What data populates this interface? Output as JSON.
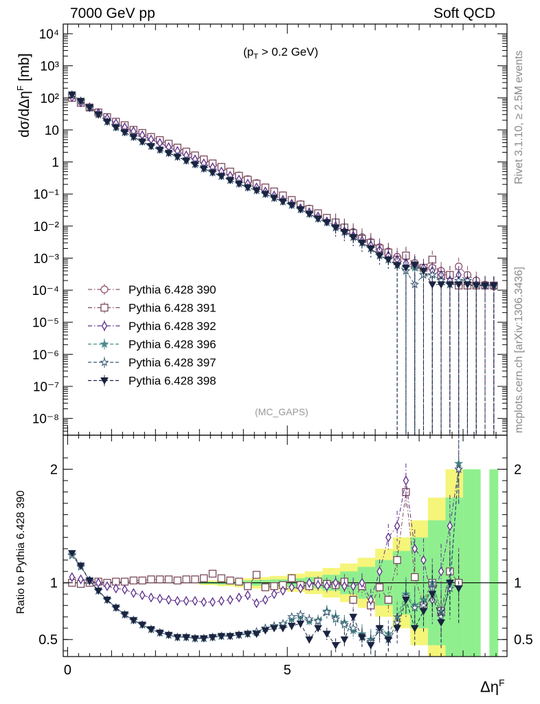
{
  "header": {
    "left": "7000 GeV pp",
    "right": "Soft QCD",
    "cut_prefix": "(p",
    "cut_sub": "T",
    "cut_suffix": " > 0.2 GeV)",
    "analysis": "(MC_GAPS)"
  },
  "side": {
    "rivet": "Rivet 3.1.10, ≥ 2.5M events",
    "mcplots": "mcplots.cern.ch [arXiv:1306.3436]"
  },
  "axes": {
    "ylabel_main": "dσ/dΔη",
    "ylabel_main_sup": "F",
    "ylabel_main_unit": " [mb]",
    "ylabel_ratio": "Ratio to Pythia 6.428 390",
    "xlabel": "Δη",
    "xlabel_sup": "F"
  },
  "chart_data": [
    {
      "type": "scatter",
      "title": "7000 GeV pp",
      "ylabel": "dσ/dΔη^F [mb]",
      "yscale": "log",
      "xlim": [
        -0.1,
        10.0
      ],
      "ylim": [
        3e-09,
        20000
      ],
      "x_ticks": [
        "0",
        "5"
      ],
      "y_ticks": [
        "10^-8",
        "10^-7",
        "10^-6",
        "10^-5",
        "10^-4",
        "10^-3",
        "10^-2",
        "10^-1",
        "1",
        "10",
        "10^2",
        "10^3",
        "10^4"
      ],
      "legend_position": "left-middle",
      "x": [
        0.1,
        0.3,
        0.5,
        0.7,
        0.9,
        1.1,
        1.3,
        1.5,
        1.7,
        1.9,
        2.1,
        2.3,
        2.5,
        2.7,
        2.9,
        3.1,
        3.3,
        3.5,
        3.7,
        3.9,
        4.1,
        4.3,
        4.5,
        4.7,
        4.9,
        5.1,
        5.3,
        5.5,
        5.7,
        5.9,
        6.1,
        6.3,
        6.5,
        6.7,
        6.9,
        7.1,
        7.3,
        7.5,
        7.7,
        7.9,
        8.1,
        8.3,
        8.5,
        8.7,
        8.9,
        9.1,
        9.3,
        9.5,
        9.7
      ],
      "series": [
        {
          "name": "Pythia 6.428 390",
          "color": "#8e4f6e",
          "marker": "open-circle",
          "line": "dash-dot",
          "values": [
            100,
            70,
            50,
            35,
            25,
            18,
            14,
            10,
            8,
            6,
            4.8,
            3.7,
            2.8,
            2.1,
            1.6,
            1.2,
            0.9,
            0.7,
            0.5,
            0.38,
            0.29,
            0.22,
            0.16,
            0.12,
            0.09,
            0.065,
            0.048,
            0.035,
            0.025,
            0.018,
            0.013,
            0.009,
            0.0065,
            0.0045,
            0.0032,
            0.0022,
            0.0016,
            0.0011,
            0.0011,
            0.0007,
            0.0005,
            0.0005,
            0.0004,
            0.0003,
            0.00055,
            0.0003,
            0.0002,
            0.00015,
            0.00013
          ]
        },
        {
          "name": "Pythia 6.428 391",
          "color": "#7a4a5c",
          "marker": "open-square",
          "line": "dash-dot",
          "values": [
            100,
            70,
            50,
            35,
            25,
            18,
            14,
            10,
            8,
            6,
            4.8,
            3.7,
            2.8,
            2.1,
            1.6,
            1.2,
            0.9,
            0.7,
            0.5,
            0.37,
            0.28,
            0.21,
            0.16,
            0.12,
            0.09,
            0.065,
            0.047,
            0.034,
            0.025,
            0.018,
            0.013,
            0.009,
            0.006,
            0.004,
            0.003,
            0.002,
            0.0015,
            0.0009,
            0.0012,
            0.0006,
            0.0005,
            0.0009,
            0.0003,
            0.0003,
            0.00014,
            0.00014,
            0.00014,
            0.00014,
            0.00014
          ]
        },
        {
          "name": "Pythia 6.428 392",
          "color": "#5a2a8a",
          "marker": "open-diamond",
          "line": "dash-dot",
          "values": [
            105,
            72,
            51,
            34,
            23,
            16,
            12,
            9,
            6.8,
            5,
            3.9,
            2.9,
            2.2,
            1.6,
            1.2,
            0.9,
            0.68,
            0.5,
            0.37,
            0.28,
            0.21,
            0.16,
            0.12,
            0.09,
            0.066,
            0.05,
            0.036,
            0.027,
            0.02,
            0.014,
            0.01,
            0.007,
            0.005,
            0.0035,
            0.0025,
            0.0018,
            0.0012,
            0.0009,
            0.0007,
            0.0006,
            0.0005,
            0.0004,
            0.0003,
            0.0002,
            0.0003,
            0.0002,
            0.00015,
            0.00014,
            0.00014
          ]
        },
        {
          "name": "Pythia 6.428 396",
          "color": "#4c8a8c",
          "marker": "star",
          "line": "dash",
          "values": [
            125,
            80,
            50,
            30,
            18,
            12,
            8.5,
            6,
            4.3,
            3.1,
            2.4,
            1.9,
            1.45,
            1.1,
            0.85,
            0.62,
            0.47,
            0.36,
            0.27,
            0.21,
            0.16,
            0.13,
            0.1,
            0.075,
            0.058,
            0.045,
            0.033,
            0.024,
            0.017,
            0.013,
            0.009,
            0.0065,
            0.0045,
            0.003,
            0.002,
            0.0012,
            0.0009,
            0.0006,
            0.0004,
            0.0005,
            0.0003,
            0.0003,
            0.0002,
            0.00015,
            0.0002,
            0.0002,
            0.00015,
            0.00014,
            0.00014
          ]
        },
        {
          "name": "Pythia 6.428 397",
          "color": "#34566e",
          "marker": "open-star",
          "line": "dash",
          "values": [
            124,
            79,
            49,
            30,
            18,
            12,
            8.4,
            6,
            4.3,
            3.1,
            2.4,
            1.9,
            1.45,
            1.1,
            0.84,
            0.62,
            0.47,
            0.36,
            0.27,
            0.21,
            0.16,
            0.13,
            0.1,
            0.075,
            0.058,
            0.045,
            0.033,
            0.024,
            0.017,
            0.013,
            0.009,
            0.0065,
            0.0045,
            0.003,
            0.002,
            0.0012,
            0.0009,
            0.0006,
            0.0004,
            0.00015,
            0.0003,
            0.0003,
            0.0002,
            0.00015,
            0.0002,
            0.0002,
            0.00015,
            0.00014,
            0.00014
          ]
        },
        {
          "name": "Pythia 6.428 398",
          "color": "#1a2340",
          "marker": "triangle-down",
          "line": "dash",
          "values": [
            126,
            80,
            50,
            30,
            18,
            12,
            8.4,
            6,
            4.3,
            3.1,
            2.4,
            1.9,
            1.45,
            1.1,
            0.84,
            0.62,
            0.47,
            0.36,
            0.27,
            0.21,
            0.16,
            0.13,
            0.1,
            0.075,
            0.058,
            0.045,
            0.033,
            0.024,
            0.017,
            0.013,
            0.009,
            0.0065,
            0.0045,
            0.003,
            0.002,
            0.0012,
            0.0009,
            0.0006,
            0.0005,
            0.0006,
            0.0004,
            0.00015,
            0.00015,
            0.00015,
            0.00015,
            0.00015,
            0.00014,
            0.00014,
            0.00014
          ]
        }
      ]
    },
    {
      "type": "scatter",
      "ylabel": "Ratio to Pythia 6.428 390",
      "xlabel": "Δη^F",
      "xlim": [
        -0.1,
        10.0
      ],
      "ylim": [
        0.35,
        2.3
      ],
      "x_ticks": [
        "0",
        "5"
      ],
      "y_ticks": [
        "0.5",
        "1",
        "2"
      ],
      "x": [
        0.1,
        0.3,
        0.5,
        0.7,
        0.9,
        1.1,
        1.3,
        1.5,
        1.7,
        1.9,
        2.1,
        2.3,
        2.5,
        2.7,
        2.9,
        3.1,
        3.3,
        3.5,
        3.7,
        3.9,
        4.1,
        4.3,
        4.5,
        4.7,
        4.9,
        5.1,
        5.3,
        5.5,
        5.7,
        5.9,
        6.1,
        6.3,
        6.5,
        6.7,
        6.9,
        7.1,
        7.3,
        7.5,
        7.7,
        7.9,
        8.1,
        8.3,
        8.5,
        8.7,
        8.9
      ],
      "reference_line": 1.0,
      "uncertainty_bands": [
        {
          "color": "#f5f57a",
          "x_edges": [
            3.0,
            3.4,
            3.8,
            4.2,
            4.6,
            5.0,
            5.4,
            5.8,
            6.2,
            6.6,
            7.0,
            7.4,
            7.8,
            8.2,
            8.6,
            9.0
          ],
          "half_width": [
            0.02,
            0.03,
            0.04,
            0.05,
            0.06,
            0.08,
            0.1,
            0.13,
            0.17,
            0.22,
            0.3,
            0.4,
            0.55,
            0.75,
            1.0
          ]
        },
        {
          "color": "#8fef8f",
          "x_edges": [
            3.0,
            3.4,
            3.8,
            4.2,
            4.6,
            5.0,
            5.4,
            5.8,
            6.2,
            6.6,
            7.0,
            7.4,
            7.8,
            8.2,
            8.6,
            9.0,
            9.4,
            9.6,
            9.8
          ],
          "half_width": [
            0.01,
            0.015,
            0.02,
            0.025,
            0.03,
            0.04,
            0.05,
            0.07,
            0.1,
            0.14,
            0.2,
            0.28,
            0.4,
            0.55,
            0.75,
            1.0,
            0,
            1.0
          ]
        }
      ],
      "series": [
        {
          "name": "Pythia 6.428 391",
          "color": "#7a4a5c",
          "marker": "open-square",
          "line": "dash-dot",
          "values": [
            1.0,
            0.99,
            1.0,
            1.01,
            1.0,
            1.01,
            1.01,
            1.02,
            1.02,
            1.03,
            1.03,
            1.03,
            1.02,
            1.03,
            1.03,
            1.04,
            1.08,
            1.04,
            1.02,
            1.01,
            0.97,
            1.07,
            0.96,
            0.97,
            0.98,
            1.04,
            0.98,
            0.97,
            1.01,
            0.99,
            0.98,
            1.01,
            0.85,
            0.97,
            0.8,
            0.96,
            0.85,
            1.2,
            1.8,
            1.05,
            0.8,
            1.0,
            0.75,
            1.1,
            1.0
          ]
        },
        {
          "name": "Pythia 6.428 392",
          "color": "#5a2a8a",
          "marker": "open-diamond",
          "line": "dash-dot",
          "values": [
            1.05,
            1.03,
            1.02,
            1.0,
            0.97,
            0.95,
            0.94,
            0.91,
            0.89,
            0.87,
            0.86,
            0.85,
            0.84,
            0.84,
            0.84,
            0.83,
            0.83,
            0.84,
            0.85,
            0.87,
            0.89,
            0.82,
            0.85,
            0.9,
            0.93,
            0.96,
            0.95,
            1.0,
            0.98,
            0.97,
            1.0,
            0.97,
            0.97,
            1.0,
            0.85,
            1.1,
            1.4,
            1.5,
            1.9,
            1.3,
            1.2,
            0.85,
            1.1,
            1.5,
            2.0
          ]
        },
        {
          "name": "Pythia 6.428 396",
          "color": "#4c8a8c",
          "marker": "star",
          "line": "dash",
          "values": [
            1.25,
            1.15,
            1.02,
            0.93,
            0.85,
            0.78,
            0.72,
            0.67,
            0.63,
            0.59,
            0.56,
            0.54,
            0.52,
            0.52,
            0.51,
            0.51,
            0.52,
            0.53,
            0.53,
            0.54,
            0.55,
            0.56,
            0.6,
            0.62,
            0.63,
            0.68,
            0.7,
            0.66,
            0.67,
            0.75,
            0.7,
            0.65,
            0.58,
            0.55,
            0.5,
            0.6,
            0.55,
            0.7,
            0.9,
            0.8,
            0.85,
            1.0,
            0.75,
            1.0,
            2.05
          ]
        },
        {
          "name": "Pythia 6.428 397",
          "color": "#34566e",
          "marker": "open-star",
          "line": "dash",
          "values": [
            1.24,
            1.14,
            1.02,
            0.93,
            0.85,
            0.78,
            0.72,
            0.67,
            0.63,
            0.59,
            0.56,
            0.54,
            0.52,
            0.52,
            0.51,
            0.51,
            0.52,
            0.53,
            0.53,
            0.54,
            0.55,
            0.57,
            0.6,
            0.62,
            0.64,
            0.7,
            0.72,
            0.68,
            0.66,
            0.74,
            0.68,
            0.63,
            0.6,
            0.52,
            0.48,
            0.58,
            0.5,
            0.65,
            0.88,
            0.78,
            0.8,
            0.95,
            0.7,
            0.95,
            2.0
          ]
        },
        {
          "name": "Pythia 6.428 398",
          "color": "#1a2340",
          "marker": "triangle-down",
          "line": "dash",
          "values": [
            1.26,
            1.15,
            1.02,
            0.93,
            0.85,
            0.78,
            0.72,
            0.67,
            0.63,
            0.59,
            0.56,
            0.54,
            0.52,
            0.52,
            0.51,
            0.51,
            0.52,
            0.53,
            0.53,
            0.54,
            0.55,
            0.55,
            0.58,
            0.6,
            0.6,
            0.62,
            0.64,
            0.5,
            0.6,
            0.55,
            0.45,
            0.5,
            0.7,
            0.52,
            0.45,
            0.6,
            0.5,
            0.6,
            0.85,
            0.6,
            0.75,
            0.9,
            0.65,
            1.0,
            0.95
          ]
        }
      ]
    }
  ]
}
